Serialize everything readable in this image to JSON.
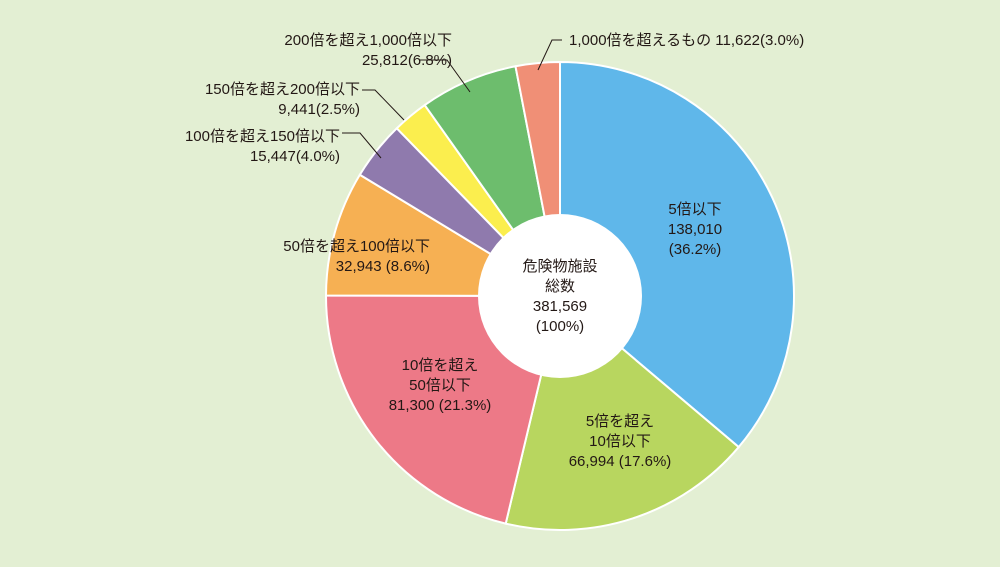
{
  "chart_data": {
    "type": "pie",
    "donut": true,
    "center_text": [
      "危険物施設",
      "総数",
      "381,569",
      "(100%)"
    ],
    "total": 381569,
    "slices": [
      {
        "label_lines": [
          "5倍以下",
          "138,010",
          "(36.2%)"
        ],
        "value": 138010,
        "percent": 36.2,
        "color": "#5fb7ea"
      },
      {
        "label_lines": [
          "5倍を超え",
          "10倍以下",
          "66,994 (17.6%)"
        ],
        "value": 66994,
        "percent": 17.6,
        "color": "#b8d65f"
      },
      {
        "label_lines": [
          "10倍を超え",
          "50倍以下",
          "81,300 (21.3%)"
        ],
        "value": 81300,
        "percent": 21.3,
        "color": "#ed7987"
      },
      {
        "label_lines": [
          "50倍を超え100倍以下",
          "32,943 (8.6%)"
        ],
        "value": 32943,
        "percent": 8.6,
        "color": "#f6b053"
      },
      {
        "label_lines": [
          "100倍を超え150倍以下",
          "15,447(4.0%)"
        ],
        "value": 15447,
        "percent": 4.0,
        "color": "#8f7aad"
      },
      {
        "label_lines": [
          "150倍を超え200倍以下",
          "9,441(2.5%)"
        ],
        "value": 9441,
        "percent": 2.5,
        "color": "#fbee4e"
      },
      {
        "label_lines": [
          "200倍を超え1,000倍以下",
          "25,812(6.8%)"
        ],
        "value": 25812,
        "percent": 6.8,
        "color": "#6dbd6d"
      },
      {
        "label_lines": [
          "1,000倍を超えるもの 11,622(3.0%)"
        ],
        "value": 11622,
        "percent": 3.0,
        "color": "#f08f76"
      }
    ]
  }
}
